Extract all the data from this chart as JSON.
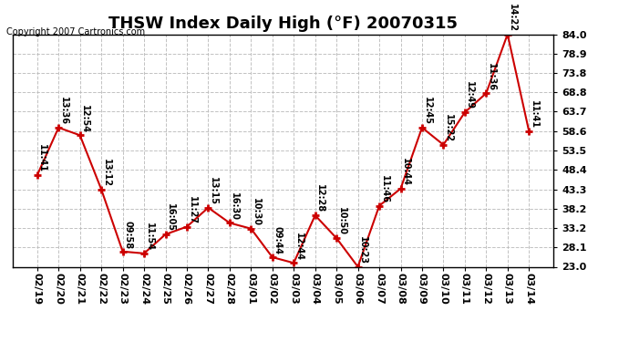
{
  "title": "THSW Index Daily High (°F) 20070315",
  "copyright": "Copyright 2007 Cartronics.com",
  "background_color": "#ffffff",
  "plot_bg_color": "#ffffff",
  "line_color": "#cc0000",
  "marker_color": "#cc0000",
  "grid_color": "#bbbbbb",
  "x_labels": [
    "02/19",
    "02/20",
    "02/21",
    "02/22",
    "02/23",
    "02/24",
    "02/25",
    "02/26",
    "02/27",
    "02/28",
    "03/01",
    "03/02",
    "03/03",
    "03/04",
    "03/05",
    "03/06",
    "03/07",
    "03/08",
    "03/09",
    "03/10",
    "03/11",
    "03/12",
    "03/13",
    "03/14"
  ],
  "y_values": [
    47.0,
    59.5,
    57.5,
    43.3,
    27.0,
    26.5,
    31.5,
    33.5,
    38.5,
    34.5,
    33.0,
    25.5,
    24.0,
    36.5,
    30.5,
    23.0,
    39.0,
    43.5,
    59.5,
    55.0,
    63.5,
    68.5,
    84.0,
    58.6
  ],
  "time_labels": [
    "11:41",
    "13:36",
    "12:54",
    "13:12",
    "09:58",
    "11:54",
    "16:05",
    "11:27",
    "13:15",
    "16:30",
    "10:30",
    "09:44",
    "12:44",
    "12:28",
    "10:50",
    "10:23",
    "11:46",
    "10:44",
    "12:45",
    "15:22",
    "12:49",
    "11:36",
    "14:22",
    "11:41"
  ],
  "ylim": [
    23.0,
    84.0
  ],
  "yticks": [
    23.0,
    28.1,
    33.2,
    38.2,
    43.3,
    48.4,
    53.5,
    58.6,
    63.7,
    68.8,
    73.8,
    78.9,
    84.0
  ],
  "title_fontsize": 13,
  "label_fontsize": 7,
  "tick_fontsize": 8,
  "copyright_fontsize": 7
}
